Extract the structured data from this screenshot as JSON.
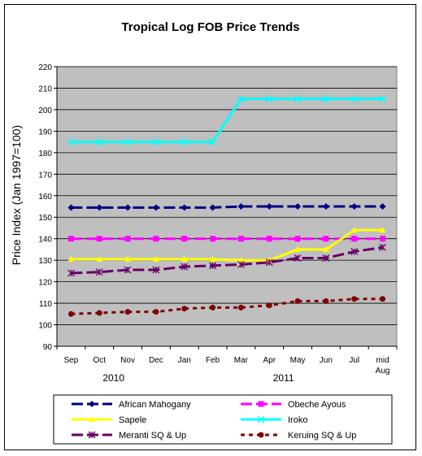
{
  "chart_data": {
    "type": "line",
    "title": "Tropical Log FOB Price Trends",
    "ylabel": "Price Index (Jan 1997=100)",
    "ylim": [
      90,
      220
    ],
    "yticks": [
      90,
      100,
      110,
      120,
      130,
      140,
      150,
      160,
      170,
      180,
      190,
      200,
      210,
      220
    ],
    "categories": [
      "Sep",
      "Oct",
      "Nov",
      "Dec",
      "Jan",
      "Feb",
      "Mar",
      "Apr",
      "May",
      "Jun",
      "Jul",
      "mid Aug"
    ],
    "category_label_lines": [
      [
        "Sep"
      ],
      [
        "Oct"
      ],
      [
        "Nov"
      ],
      [
        "Dec"
      ],
      [
        "Jan"
      ],
      [
        "Feb"
      ],
      [
        "Mar"
      ],
      [
        "Apr"
      ],
      [
        "May"
      ],
      [
        "Jun"
      ],
      [
        "Jul"
      ],
      [
        "mid",
        "Aug"
      ]
    ],
    "year_labels": [
      {
        "label": "2010",
        "span": [
          0,
          3
        ]
      },
      {
        "label": "2011",
        "span": [
          4,
          11
        ]
      }
    ],
    "grid": true,
    "plot_background": "#bfbfbf",
    "legend_position": "bottom",
    "series": [
      {
        "name": "African Mahogany",
        "color": "#000080",
        "marker": "diamond",
        "dash": "long",
        "values": [
          154.5,
          154.5,
          154.5,
          154.5,
          154.5,
          154.5,
          155,
          155,
          155,
          155,
          155,
          155
        ]
      },
      {
        "name": "Obeche Ayous",
        "color": "#ff00ff",
        "marker": "square",
        "dash": "long",
        "values": [
          140,
          140,
          140,
          140,
          140,
          140,
          140,
          140,
          140,
          140,
          140,
          140
        ]
      },
      {
        "name": "Sapele",
        "color": "#ffff00",
        "marker": "triangle",
        "dash": "solid",
        "values": [
          130.5,
          130.5,
          130.5,
          130.5,
          130.5,
          130.5,
          130,
          130,
          135,
          135,
          144,
          144
        ]
      },
      {
        "name": "Iroko",
        "color": "#00ffff",
        "marker": "x",
        "dash": "solid",
        "values": [
          185,
          185,
          185,
          185,
          185,
          185,
          205,
          205,
          205,
          205,
          205,
          205
        ]
      },
      {
        "name": "Meranti SQ & Up",
        "color": "#660066",
        "marker": "star",
        "dash": "long",
        "values": [
          124,
          124.5,
          125.5,
          125.5,
          127,
          127.5,
          128,
          129,
          131,
          131,
          134,
          136
        ]
      },
      {
        "name": "Keruing SQ & Up",
        "color": "#800000",
        "marker": "circle",
        "dash": "short",
        "values": [
          105,
          105.5,
          106,
          106,
          107.5,
          108,
          108,
          109,
          111,
          111,
          112,
          112
        ]
      }
    ]
  }
}
